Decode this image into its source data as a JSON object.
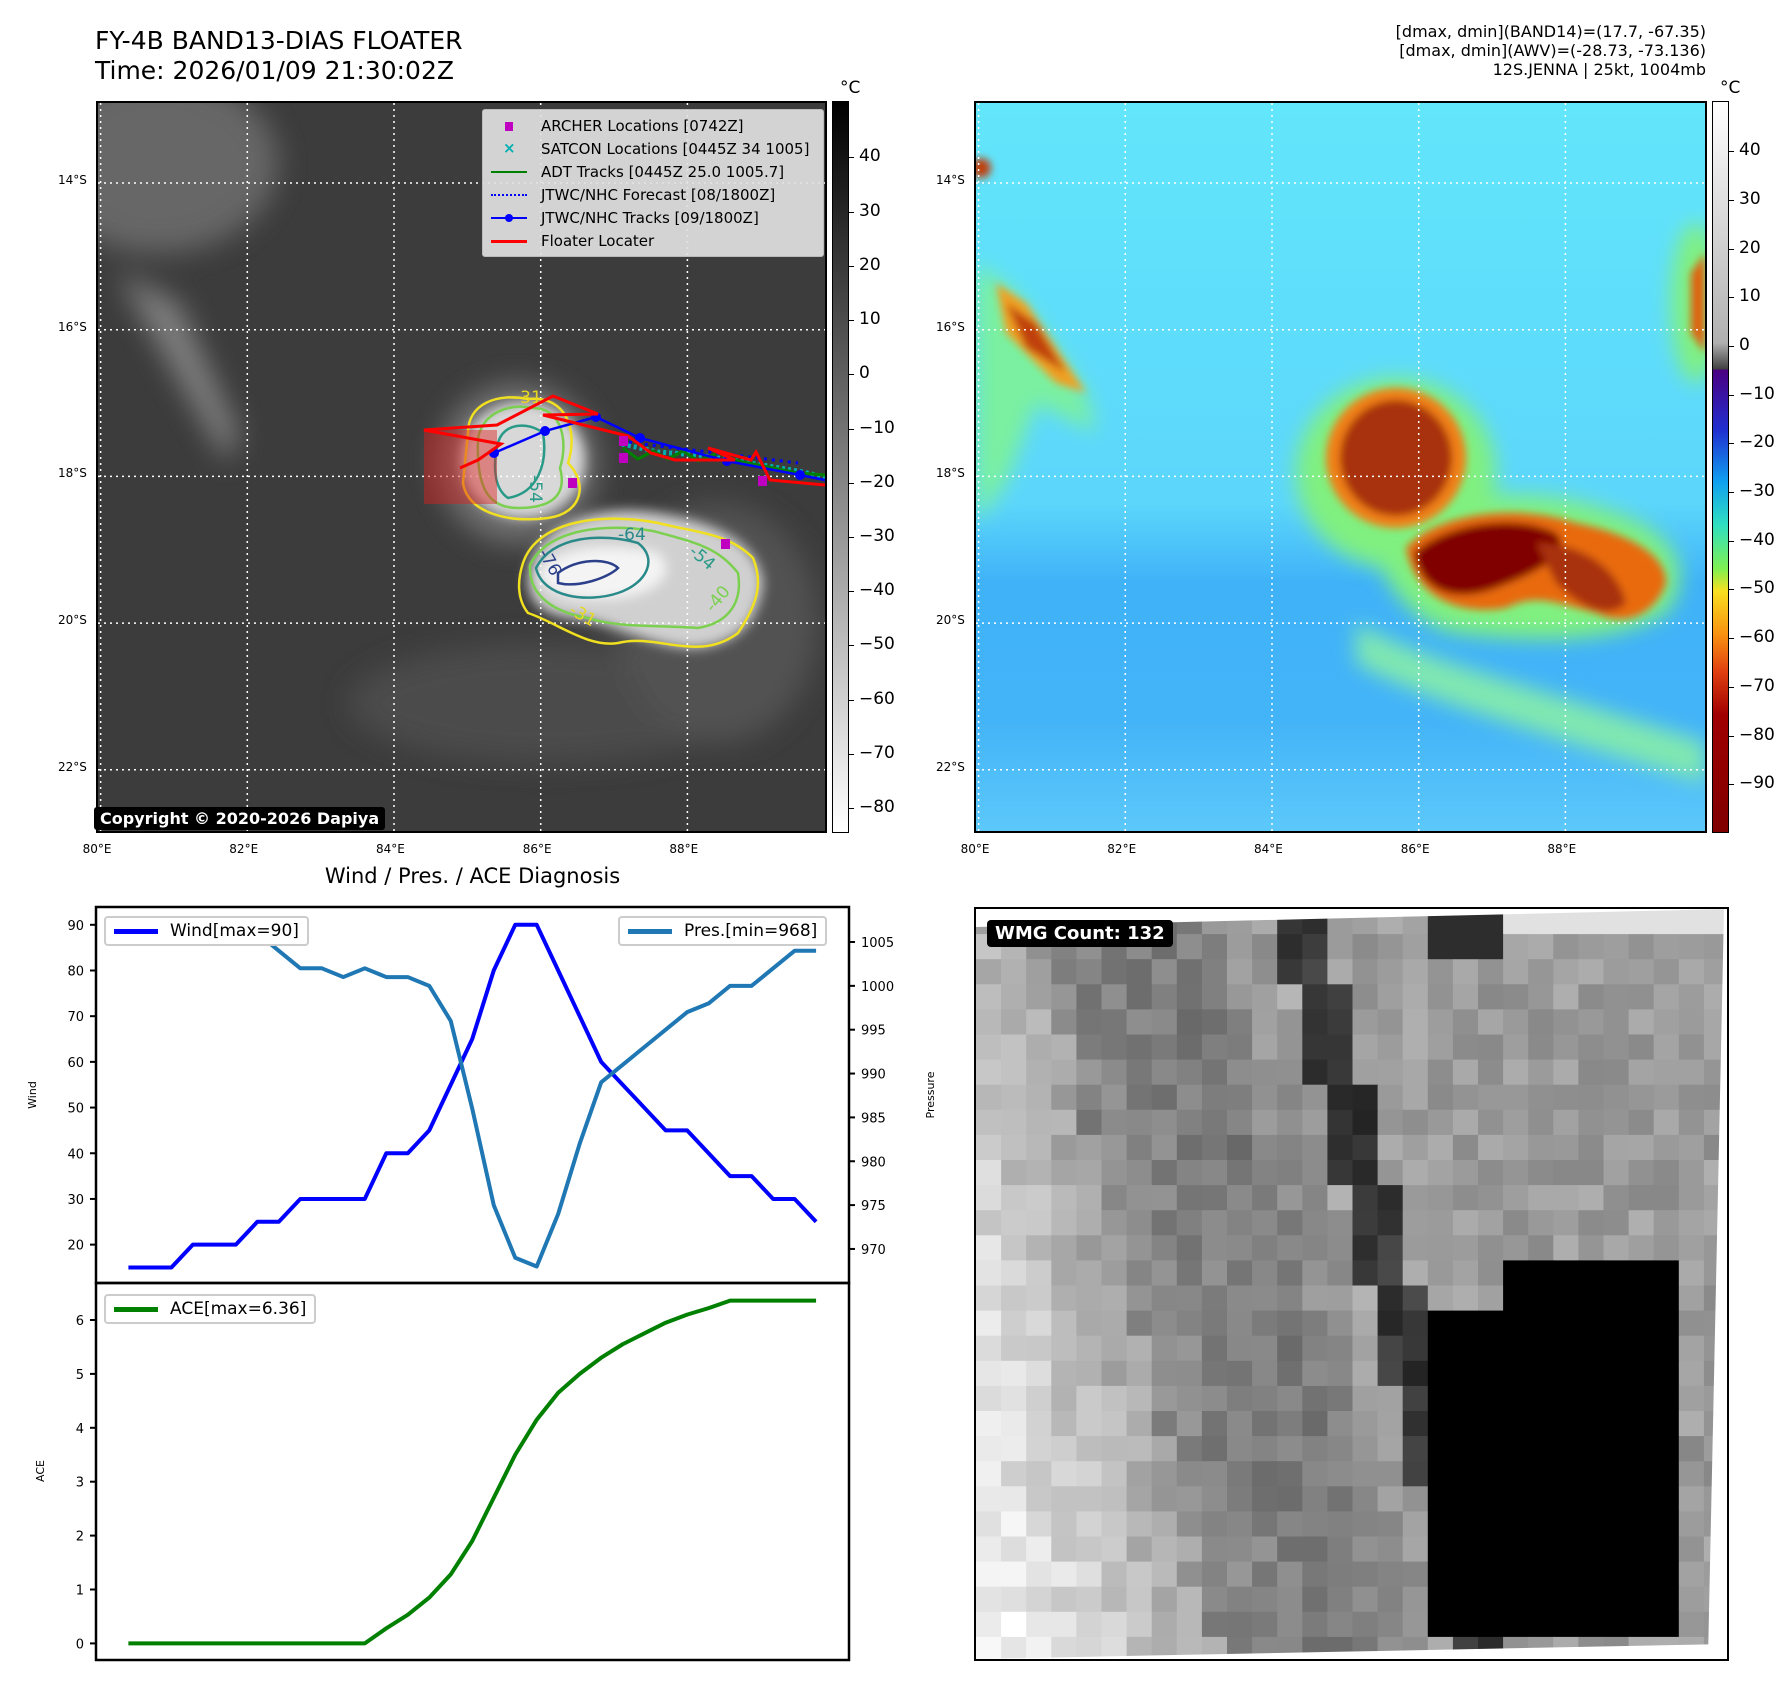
{
  "header": {
    "title_line1": "FY-4B BAND13-DIAS FLOATER",
    "title_line2": "Time: 2026/01/09 21:30:02Z",
    "info_line1": "[dmax, dmin](BAND14)=(17.7, -67.35)",
    "info_line2": "[dmax, dmin](AWV)=(-28.73, -73.136)",
    "info_line3": "12S.JENNA | 25kt, 1004mb"
  },
  "maps": {
    "lat_labels": [
      "14°S",
      "16°S",
      "18°S",
      "20°S",
      "22°S"
    ],
    "lat_values": [
      14,
      16,
      18,
      20,
      22
    ],
    "lon_labels": [
      "80°E",
      "82°E",
      "84°E",
      "86°E",
      "88°E"
    ],
    "lon_values": [
      80,
      82,
      84,
      86,
      88
    ],
    "copyright": "Copyright © 2020-2026 Dapiya",
    "legend": [
      {
        "label": "ARCHER Locations [0742Z]",
        "color": "#c000c0",
        "style": "square"
      },
      {
        "label": "SATCON Locations [0445Z 34 1005]",
        "color": "#00c0c0",
        "style": "x"
      },
      {
        "label": "ADT Tracks [0445Z 25.0 1005.7]",
        "color": "#008000",
        "style": "line"
      },
      {
        "label": "JTWC/NHC Forecast [08/1800Z]",
        "color": "#0000ff",
        "style": "dotted"
      },
      {
        "label": "JTWC/NHC Tracks [09/1800Z]",
        "color": "#0000ff",
        "style": "line-marker"
      },
      {
        "label": "Floater Locater",
        "color": "#ff0000",
        "style": "line"
      }
    ],
    "contour_labels": [
      "-31",
      "-54",
      "-64",
      "-76",
      "-54",
      "-31",
      "-40"
    ],
    "left_colorbar": {
      "unit": "°C",
      "ticks": [
        "40",
        "30",
        "20",
        "10",
        "0",
        "−10",
        "−20",
        "−30",
        "−40",
        "−50",
        "−60",
        "−70",
        "−80"
      ],
      "values": [
        40,
        30,
        20,
        10,
        0,
        -10,
        -20,
        -30,
        -40,
        -50,
        -60,
        -70,
        -80
      ],
      "range": [
        50.4,
        -84.6
      ]
    },
    "right_colorbar": {
      "unit": "°C",
      "ticks": [
        "40",
        "30",
        "20",
        "10",
        "0",
        "−10",
        "−20",
        "−30",
        "−40",
        "−50",
        "−60",
        "−70",
        "−80",
        "−90"
      ],
      "values": [
        40,
        30,
        20,
        10,
        0,
        -10,
        -20,
        -30,
        -40,
        -50,
        -60,
        -70,
        -80,
        -90
      ],
      "range": [
        50.3,
        -100
      ]
    }
  },
  "wmg": {
    "count_label": "WMG Count: 132"
  },
  "chart_data": [
    {
      "type": "line",
      "title": "Wind / Pres. / ACE Diagnosis",
      "ylabel": "Wind",
      "y2label": "Pressure",
      "ylim": [
        11,
        94
      ],
      "y2lim": [
        966,
        1008
      ],
      "yticks": [
        20,
        30,
        40,
        50,
        60,
        70,
        80,
        90
      ],
      "y2ticks": [
        970,
        975,
        980,
        985,
        990,
        995,
        1000,
        1005
      ],
      "series": [
        {
          "name": "Wind[max=90]",
          "color": "#0000ff",
          "axis": "left",
          "values": [
            15,
            15,
            15,
            20,
            20,
            20,
            25,
            25,
            30,
            30,
            30,
            30,
            40,
            40,
            45,
            55,
            65,
            80,
            90,
            90,
            80,
            70,
            60,
            55,
            50,
            45,
            45,
            40,
            35,
            35,
            30,
            30,
            25
          ]
        },
        {
          "name": "Pres.[min=968]",
          "color": "#1f77b4",
          "axis": "right",
          "values": [
            1007,
            1007,
            1007,
            1007,
            1007,
            1006,
            1006,
            1004,
            1002,
            1002,
            1001,
            1002,
            1001,
            1001,
            1000,
            996,
            986,
            975,
            969,
            968,
            974,
            982,
            989,
            991,
            993,
            995,
            997,
            998,
            1000,
            1000,
            1002,
            1004,
            1004
          ]
        }
      ]
    },
    {
      "type": "line",
      "ylabel": "ACE",
      "ylim": [
        -0.3,
        6.7
      ],
      "yticks": [
        0,
        1,
        2,
        3,
        4,
        5,
        6
      ],
      "series": [
        {
          "name": "ACE[max=6.36]",
          "color": "#008000",
          "values": [
            0,
            0,
            0,
            0,
            0,
            0,
            0,
            0,
            0,
            0,
            0,
            0,
            0.28,
            0.53,
            0.85,
            1.28,
            1.9,
            2.7,
            3.5,
            4.15,
            4.65,
            5.0,
            5.3,
            5.55,
            5.75,
            5.95,
            6.1,
            6.22,
            6.36,
            6.36,
            6.36,
            6.36,
            6.36
          ]
        }
      ]
    }
  ]
}
